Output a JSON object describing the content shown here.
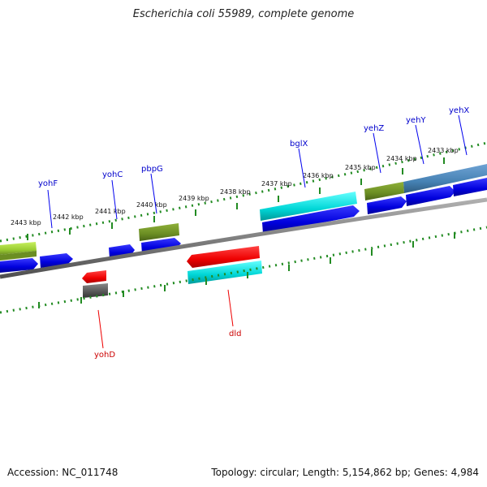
{
  "title": "Escherichia coli 55989, complete genome",
  "footer": {
    "accession": "Accession: NC_011748",
    "summary": "Topology: circular; Length: 5,154,862 bp; Genes: 4,984"
  },
  "colors": {
    "forward_cds": "#0000ee",
    "reverse_cds": "#ee0000",
    "forward_label": "#0000cc",
    "reverse_label": "#cc0000",
    "cog_olive": "#6b8e23",
    "cog_yellowgreen": "#9acd32",
    "cog_cyan": "#00cccc",
    "cog_steelblue": "#4682b4",
    "cog_gray": "#555555",
    "backbone": "#808080",
    "ruler": "#228b22"
  },
  "ruler_labels": [
    "2443 kbp",
    "2442 kbp",
    "2441 kbp",
    "2440 kbp",
    "2439 kbp",
    "2438 kbp",
    "2437 kbp",
    "2436 kbp",
    "2435 kbp",
    "2434 kbp",
    "2433 kbp"
  ],
  "gene_labels": {
    "yohF": "yohF",
    "yohC": "yohC",
    "pbpG": "pbpG",
    "yohD": "yohD",
    "dld": "dld",
    "bglX": "bglX",
    "yehZ": "yehZ",
    "yehY": "yehY",
    "yehX": "yehX"
  }
}
